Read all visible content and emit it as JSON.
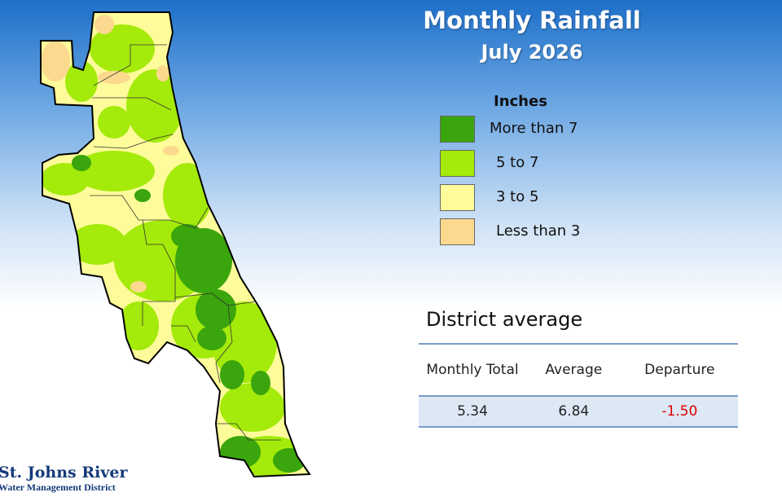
{
  "header": {
    "title": "Monthly Rainfall",
    "subtitle": "July 2026"
  },
  "legend": {
    "title": "Inches",
    "items": [
      {
        "label": "More than 7",
        "color": "#3aa50c"
      },
      {
        "label": "5 to 7",
        "color": "#a4ea0a"
      },
      {
        "label": "3 to 5",
        "color": "#fdfb9a"
      },
      {
        "label": "Less than 3",
        "color": "#fcd98e"
      }
    ]
  },
  "summary": {
    "title": "District average",
    "table": {
      "headers": [
        "Monthly Total",
        "Average",
        "Departure"
      ],
      "rows": [
        [
          "5.34",
          "6.84",
          "-1.50"
        ]
      ]
    }
  },
  "logo": {
    "name": "St. Johns River",
    "subname": "Water Management District"
  }
}
